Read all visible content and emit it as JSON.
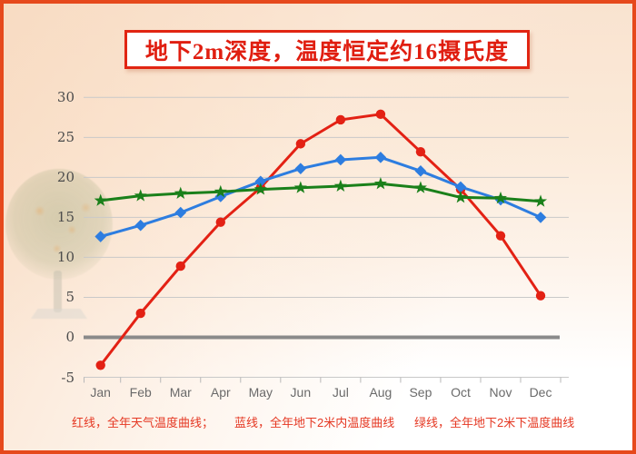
{
  "title": {
    "text": "地下2m深度，温度恒定约16摄氏度"
  },
  "legend": {
    "items": [
      {
        "label": "红线，全年天气温度曲线；",
        "color": "#e32114"
      },
      {
        "label": "蓝线，全年地下2米内温度曲线",
        "color": "#2d7de0"
      },
      {
        "label": "绿线，全年地下2米下温度曲线",
        "color": "#1a801a"
      }
    ]
  },
  "colors": {
    "page_border": "#e6491c",
    "title_red": "#e01e10",
    "legend_red": "#e53823",
    "grid": "#c9c9c9",
    "zero_line": "#8a8a8a",
    "tick": "#b8b8b8",
    "axis_text": "#4c4c4c",
    "month_text": "#6a6a6a"
  },
  "chart_data": {
    "type": "line",
    "title": "地下2m深度，温度恒定约16摄氏度",
    "categories": [
      "Jan",
      "Feb",
      "Mar",
      "Apr",
      "May",
      "Jun",
      "Jul",
      "Aug",
      "Sep",
      "Oct",
      "Nov",
      "Dec"
    ],
    "yticks": [
      30,
      25,
      20,
      15,
      10,
      5,
      0,
      -5
    ],
    "ylim": [
      -5,
      30
    ],
    "grid": true,
    "zero_line_bold": true,
    "legend_position": "bottom",
    "series": [
      {
        "name": "红线，全年天气温度曲线",
        "color": "#e32114",
        "marker": "circle",
        "values": [
          -3.5,
          3.0,
          8.9,
          14.4,
          18.7,
          24.2,
          27.2,
          27.9,
          23.2,
          18.5,
          12.7,
          5.2
        ]
      },
      {
        "name": "蓝线，全年地下2米内温度曲线",
        "color": "#2d7de0",
        "marker": "diamond",
        "values": [
          12.6,
          14.0,
          15.6,
          17.6,
          19.5,
          21.1,
          22.2,
          22.5,
          20.8,
          18.8,
          17.2,
          15.0
        ]
      },
      {
        "name": "绿线，全年地下2米下温度曲线",
        "color": "#1a801a",
        "marker": "star",
        "values": [
          17.1,
          17.7,
          18.0,
          18.2,
          18.5,
          18.7,
          18.9,
          19.2,
          18.7,
          17.5,
          17.4,
          17.0
        ]
      }
    ]
  }
}
